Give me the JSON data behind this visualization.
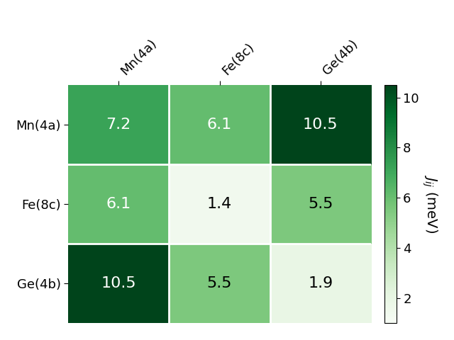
{
  "matrix": [
    [
      7.2,
      6.1,
      10.5
    ],
    [
      6.1,
      1.4,
      5.5
    ],
    [
      10.5,
      5.5,
      1.9
    ]
  ],
  "row_labels": [
    "Mn(4a)",
    "Fe(8c)",
    "Ge(4b)"
  ],
  "col_labels": [
    "Mn(4a)",
    "Fe(8c)",
    "Ge(4b)"
  ],
  "colorbar_label": "$J_{ij}$ (meV)",
  "vmin": 1.0,
  "vmax": 10.5,
  "cmap": "Greens",
  "text_color_threshold": 6.0,
  "cell_text_fontsize": 16,
  "tick_label_fontsize": 13,
  "colorbar_label_fontsize": 14,
  "background_color": "#ffffff",
  "colorbar_ticks": [
    2,
    4,
    6,
    8,
    10
  ]
}
